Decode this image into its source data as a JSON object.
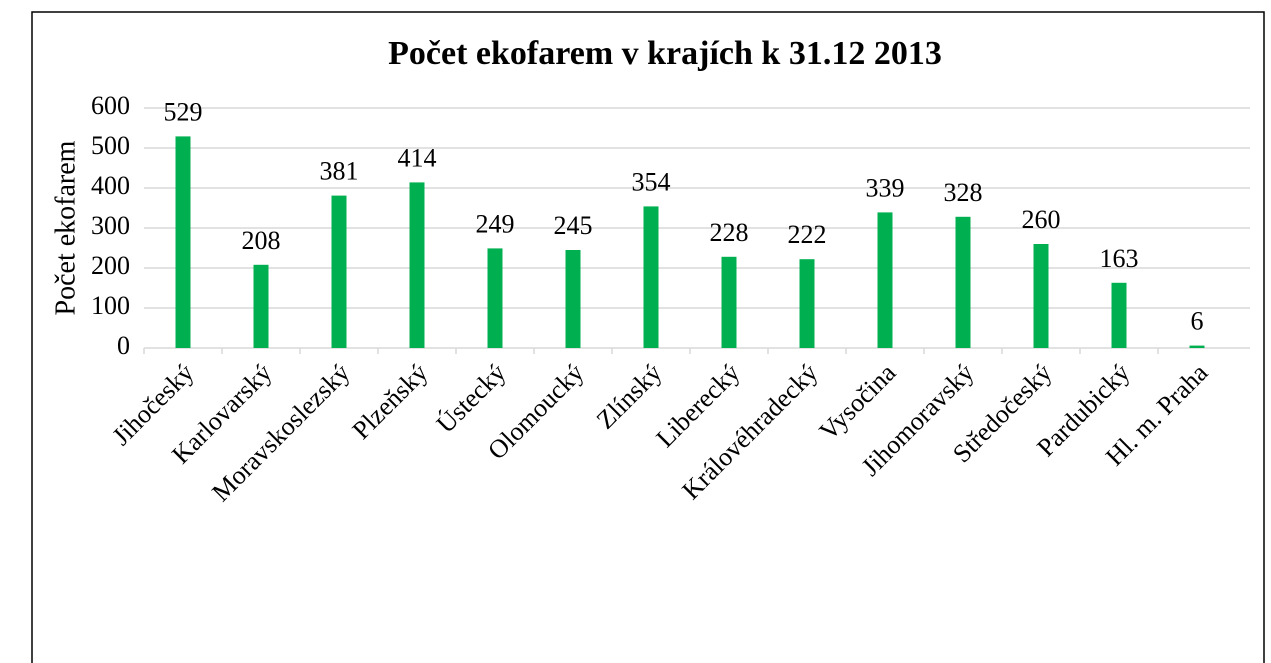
{
  "chart_data": {
    "type": "bar",
    "title": "Počet ekofarem v krajích k 31.12 2013",
    "y_label": "Počet ekofarem",
    "categories": [
      "Jihočeský",
      "Karlovarský",
      "Moravskoslezský",
      "Plzeňský",
      "Ústecký",
      "Olomoucký",
      "Zlínský",
      "Liberecký",
      "Královéhradecký",
      "Vysočina",
      "Jihomoravský",
      "Středočeský",
      "Pardubický",
      "Hl. m. Praha"
    ],
    "values": [
      529,
      208,
      381,
      414,
      249,
      245,
      354,
      228,
      222,
      339,
      328,
      260,
      163,
      6
    ],
    "color": "#00b050",
    "ylim": [
      0,
      600
    ],
    "yticks": [
      0,
      100,
      200,
      300,
      400,
      500,
      600
    ],
    "grid": true
  }
}
